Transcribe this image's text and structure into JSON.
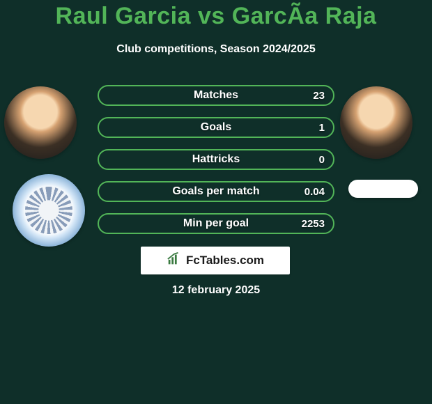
{
  "palette": {
    "background": "#0f2f29",
    "title_color": "#52b558",
    "text_color": "#ffffff",
    "pill_bg": "#0f2f29",
    "pill_border": "#52b558",
    "logo_bg": "#ffffff",
    "logo_text": "#1a1a1a",
    "logo_accent": "#3a7a40"
  },
  "title": {
    "text": "Raul Garcia vs GarcÃ­a Raja",
    "fontsize": 34,
    "fontweight": 900,
    "color": "#52b558"
  },
  "subtitle": {
    "text": "Club competitions, Season 2024/2025",
    "fontsize": 16,
    "fontweight": 700,
    "color": "#ffffff"
  },
  "left_player": {
    "name": "Raul Garcia",
    "avatar_bg": "#f6d7b0"
  },
  "right_player": {
    "name": "GarcÃ­a Raja",
    "avatar_bg": "#f6d7b0"
  },
  "stats": {
    "pill_height": 30,
    "pill_radius": 15,
    "pill_border_width": 2,
    "label_fontsize": 16,
    "value_fontsize": 15,
    "rows": [
      {
        "label": "Matches",
        "right_value": "23"
      },
      {
        "label": "Goals",
        "right_value": "1"
      },
      {
        "label": "Hattricks",
        "right_value": "0"
      },
      {
        "label": "Goals per match",
        "right_value": "0.04"
      },
      {
        "label": "Min per goal",
        "right_value": "2253"
      }
    ]
  },
  "logo": {
    "text": "FcTables.com",
    "bg": "#ffffff",
    "text_color": "#1a1a1a",
    "icon_color": "#3a7a40"
  },
  "date": {
    "text": "12 february 2025",
    "fontsize": 16,
    "color": "#ffffff"
  }
}
